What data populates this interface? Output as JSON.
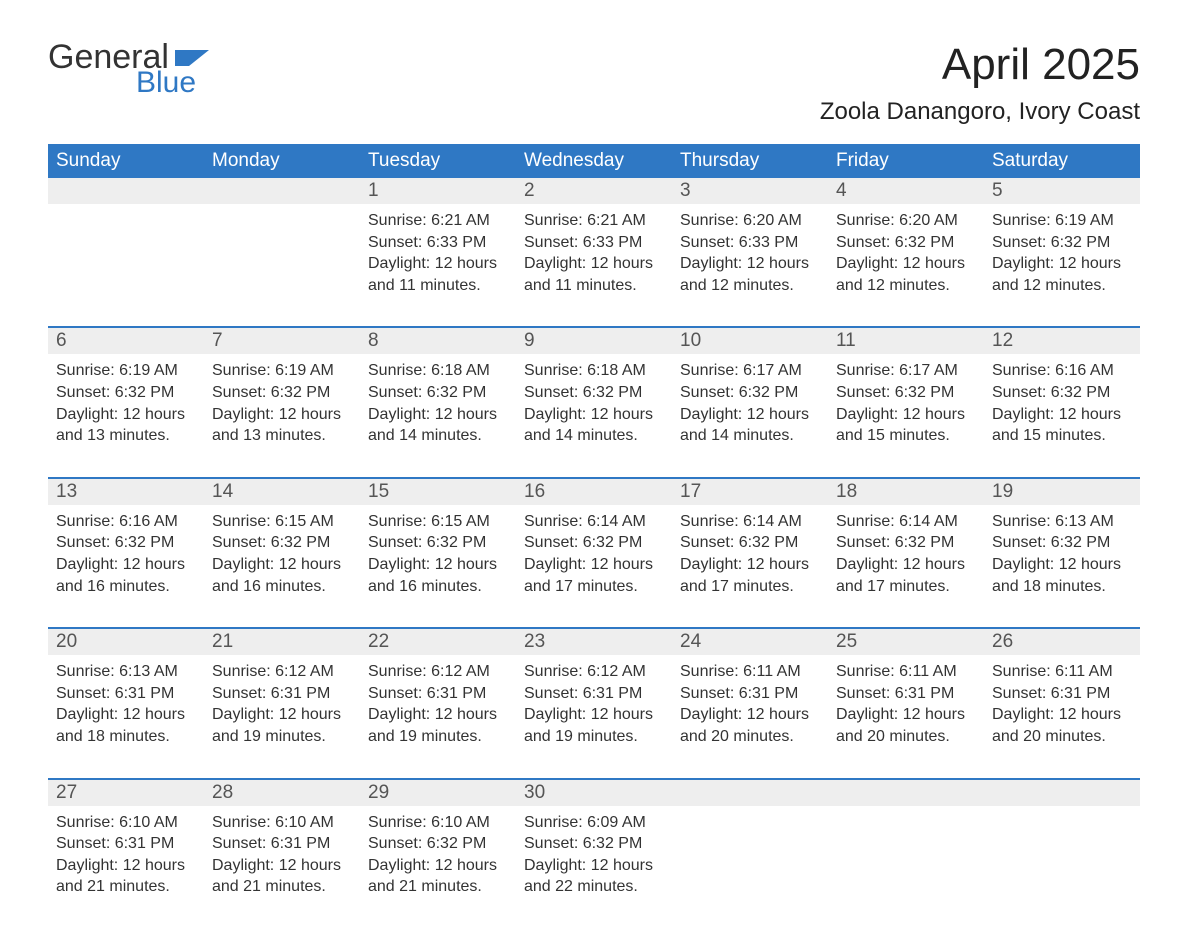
{
  "logo": {
    "text1": "General",
    "text2": "Blue",
    "accent_color": "#2f78c4"
  },
  "title": {
    "month": "April 2025",
    "location": "Zoola Danangoro, Ivory Coast"
  },
  "weekdays": [
    "Sunday",
    "Monday",
    "Tuesday",
    "Wednesday",
    "Thursday",
    "Friday",
    "Saturday"
  ],
  "style": {
    "header_bg": "#2f78c4",
    "header_text": "#ffffff",
    "daynum_bg": "#eeeeee",
    "daynum_text": "#555555",
    "body_text": "#333333",
    "week_border": "#2f78c4",
    "page_bg": "#ffffff",
    "month_fontsize": 44,
    "location_fontsize": 24,
    "weekday_fontsize": 19,
    "daynum_fontsize": 19,
    "content_fontsize": 16
  },
  "weeks": [
    [
      {
        "num": "",
        "lines": []
      },
      {
        "num": "",
        "lines": []
      },
      {
        "num": "1",
        "lines": [
          "Sunrise: 6:21 AM",
          "Sunset: 6:33 PM",
          "Daylight: 12 hours",
          "and 11 minutes."
        ]
      },
      {
        "num": "2",
        "lines": [
          "Sunrise: 6:21 AM",
          "Sunset: 6:33 PM",
          "Daylight: 12 hours",
          "and 11 minutes."
        ]
      },
      {
        "num": "3",
        "lines": [
          "Sunrise: 6:20 AM",
          "Sunset: 6:33 PM",
          "Daylight: 12 hours",
          "and 12 minutes."
        ]
      },
      {
        "num": "4",
        "lines": [
          "Sunrise: 6:20 AM",
          "Sunset: 6:32 PM",
          "Daylight: 12 hours",
          "and 12 minutes."
        ]
      },
      {
        "num": "5",
        "lines": [
          "Sunrise: 6:19 AM",
          "Sunset: 6:32 PM",
          "Daylight: 12 hours",
          "and 12 minutes."
        ]
      }
    ],
    [
      {
        "num": "6",
        "lines": [
          "Sunrise: 6:19 AM",
          "Sunset: 6:32 PM",
          "Daylight: 12 hours",
          "and 13 minutes."
        ]
      },
      {
        "num": "7",
        "lines": [
          "Sunrise: 6:19 AM",
          "Sunset: 6:32 PM",
          "Daylight: 12 hours",
          "and 13 minutes."
        ]
      },
      {
        "num": "8",
        "lines": [
          "Sunrise: 6:18 AM",
          "Sunset: 6:32 PM",
          "Daylight: 12 hours",
          "and 14 minutes."
        ]
      },
      {
        "num": "9",
        "lines": [
          "Sunrise: 6:18 AM",
          "Sunset: 6:32 PM",
          "Daylight: 12 hours",
          "and 14 minutes."
        ]
      },
      {
        "num": "10",
        "lines": [
          "Sunrise: 6:17 AM",
          "Sunset: 6:32 PM",
          "Daylight: 12 hours",
          "and 14 minutes."
        ]
      },
      {
        "num": "11",
        "lines": [
          "Sunrise: 6:17 AM",
          "Sunset: 6:32 PM",
          "Daylight: 12 hours",
          "and 15 minutes."
        ]
      },
      {
        "num": "12",
        "lines": [
          "Sunrise: 6:16 AM",
          "Sunset: 6:32 PM",
          "Daylight: 12 hours",
          "and 15 minutes."
        ]
      }
    ],
    [
      {
        "num": "13",
        "lines": [
          "Sunrise: 6:16 AM",
          "Sunset: 6:32 PM",
          "Daylight: 12 hours",
          "and 16 minutes."
        ]
      },
      {
        "num": "14",
        "lines": [
          "Sunrise: 6:15 AM",
          "Sunset: 6:32 PM",
          "Daylight: 12 hours",
          "and 16 minutes."
        ]
      },
      {
        "num": "15",
        "lines": [
          "Sunrise: 6:15 AM",
          "Sunset: 6:32 PM",
          "Daylight: 12 hours",
          "and 16 minutes."
        ]
      },
      {
        "num": "16",
        "lines": [
          "Sunrise: 6:14 AM",
          "Sunset: 6:32 PM",
          "Daylight: 12 hours",
          "and 17 minutes."
        ]
      },
      {
        "num": "17",
        "lines": [
          "Sunrise: 6:14 AM",
          "Sunset: 6:32 PM",
          "Daylight: 12 hours",
          "and 17 minutes."
        ]
      },
      {
        "num": "18",
        "lines": [
          "Sunrise: 6:14 AM",
          "Sunset: 6:32 PM",
          "Daylight: 12 hours",
          "and 17 minutes."
        ]
      },
      {
        "num": "19",
        "lines": [
          "Sunrise: 6:13 AM",
          "Sunset: 6:32 PM",
          "Daylight: 12 hours",
          "and 18 minutes."
        ]
      }
    ],
    [
      {
        "num": "20",
        "lines": [
          "Sunrise: 6:13 AM",
          "Sunset: 6:31 PM",
          "Daylight: 12 hours",
          "and 18 minutes."
        ]
      },
      {
        "num": "21",
        "lines": [
          "Sunrise: 6:12 AM",
          "Sunset: 6:31 PM",
          "Daylight: 12 hours",
          "and 19 minutes."
        ]
      },
      {
        "num": "22",
        "lines": [
          "Sunrise: 6:12 AM",
          "Sunset: 6:31 PM",
          "Daylight: 12 hours",
          "and 19 minutes."
        ]
      },
      {
        "num": "23",
        "lines": [
          "Sunrise: 6:12 AM",
          "Sunset: 6:31 PM",
          "Daylight: 12 hours",
          "and 19 minutes."
        ]
      },
      {
        "num": "24",
        "lines": [
          "Sunrise: 6:11 AM",
          "Sunset: 6:31 PM",
          "Daylight: 12 hours",
          "and 20 minutes."
        ]
      },
      {
        "num": "25",
        "lines": [
          "Sunrise: 6:11 AM",
          "Sunset: 6:31 PM",
          "Daylight: 12 hours",
          "and 20 minutes."
        ]
      },
      {
        "num": "26",
        "lines": [
          "Sunrise: 6:11 AM",
          "Sunset: 6:31 PM",
          "Daylight: 12 hours",
          "and 20 minutes."
        ]
      }
    ],
    [
      {
        "num": "27",
        "lines": [
          "Sunrise: 6:10 AM",
          "Sunset: 6:31 PM",
          "Daylight: 12 hours",
          "and 21 minutes."
        ]
      },
      {
        "num": "28",
        "lines": [
          "Sunrise: 6:10 AM",
          "Sunset: 6:31 PM",
          "Daylight: 12 hours",
          "and 21 minutes."
        ]
      },
      {
        "num": "29",
        "lines": [
          "Sunrise: 6:10 AM",
          "Sunset: 6:32 PM",
          "Daylight: 12 hours",
          "and 21 minutes."
        ]
      },
      {
        "num": "30",
        "lines": [
          "Sunrise: 6:09 AM",
          "Sunset: 6:32 PM",
          "Daylight: 12 hours",
          "and 22 minutes."
        ]
      },
      {
        "num": "",
        "lines": []
      },
      {
        "num": "",
        "lines": []
      },
      {
        "num": "",
        "lines": []
      }
    ]
  ]
}
